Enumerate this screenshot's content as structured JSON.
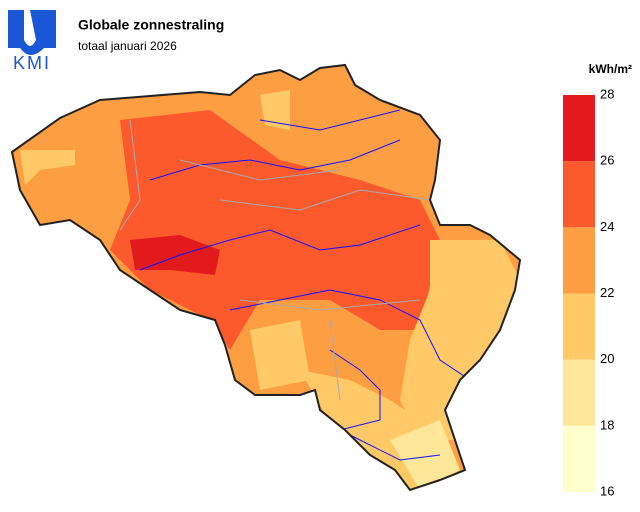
{
  "header": {
    "logo": "KMI",
    "title": "Globale zonnestraling",
    "subtitle": "totaal januari 2026"
  },
  "legend": {
    "unit": "kWh/m²",
    "ticks": [
      16,
      18,
      20,
      22,
      24,
      26,
      28
    ],
    "colors": [
      "#ffffcc",
      "#ffe79a",
      "#fec966",
      "#fd9e43",
      "#fc5a2d",
      "#e31a1c"
    ]
  }
}
